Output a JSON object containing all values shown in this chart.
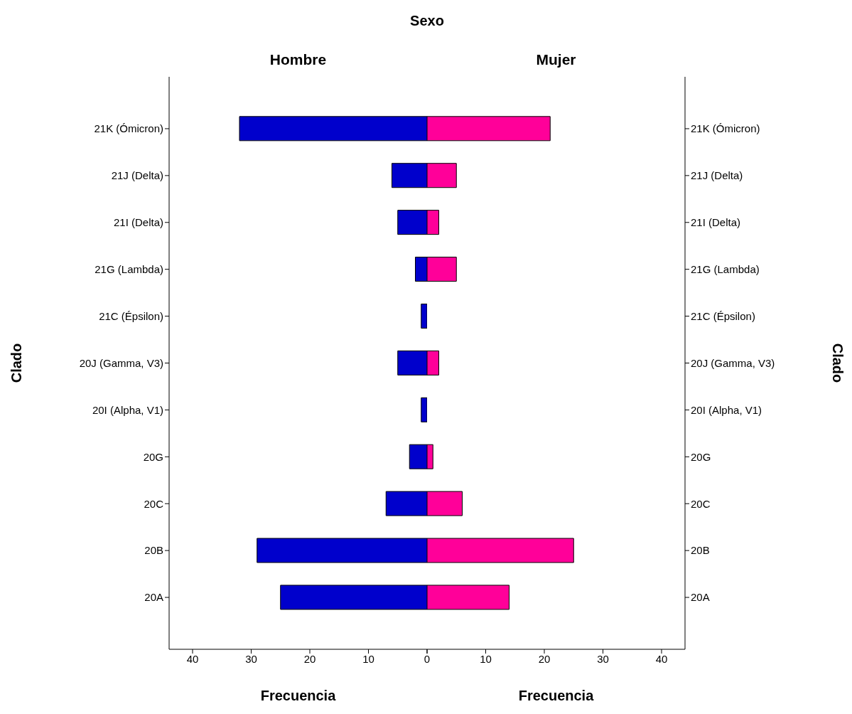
{
  "chart_data": [
    {
      "type": "bar",
      "orientation": "horizontal",
      "title": "Hombre",
      "annotations": [
        "Sexo"
      ],
      "xlabel": "Frecuencia",
      "ylabel": "Clado",
      "categories": [
        "21K (Ómicron)",
        "21J (Delta)",
        "21I (Delta)",
        "21G (Lambda)",
        "21C (Épsilon)",
        "20J (Gamma, V3)",
        "20I (Alpha, V1)",
        "20G",
        "20C",
        "20B",
        "20A"
      ],
      "values": [
        32,
        6,
        5,
        2,
        1,
        5,
        1,
        3,
        7,
        29,
        25
      ],
      "color": "#0000cc",
      "xlim": [
        44,
        0
      ],
      "xticks": [
        40,
        30,
        20,
        10,
        0
      ]
    },
    {
      "type": "bar",
      "orientation": "horizontal",
      "title": "Mujer",
      "xlabel": "Frecuencia",
      "ylabel": "Clado",
      "categories": [
        "21K (Ómicron)",
        "21J (Delta)",
        "21I (Delta)",
        "21G (Lambda)",
        "21C (Épsilon)",
        "20J (Gamma, V3)",
        "20I (Alpha, V1)",
        "20G",
        "20C",
        "20B",
        "20A"
      ],
      "values": [
        21,
        5,
        2,
        5,
        0,
        2,
        0,
        1,
        6,
        25,
        14
      ],
      "color": "#ff0099",
      "xlim": [
        0,
        44
      ],
      "xticks": [
        {
          "value": 0,
          "label": null
        },
        10,
        20,
        30,
        40
      ]
    }
  ]
}
